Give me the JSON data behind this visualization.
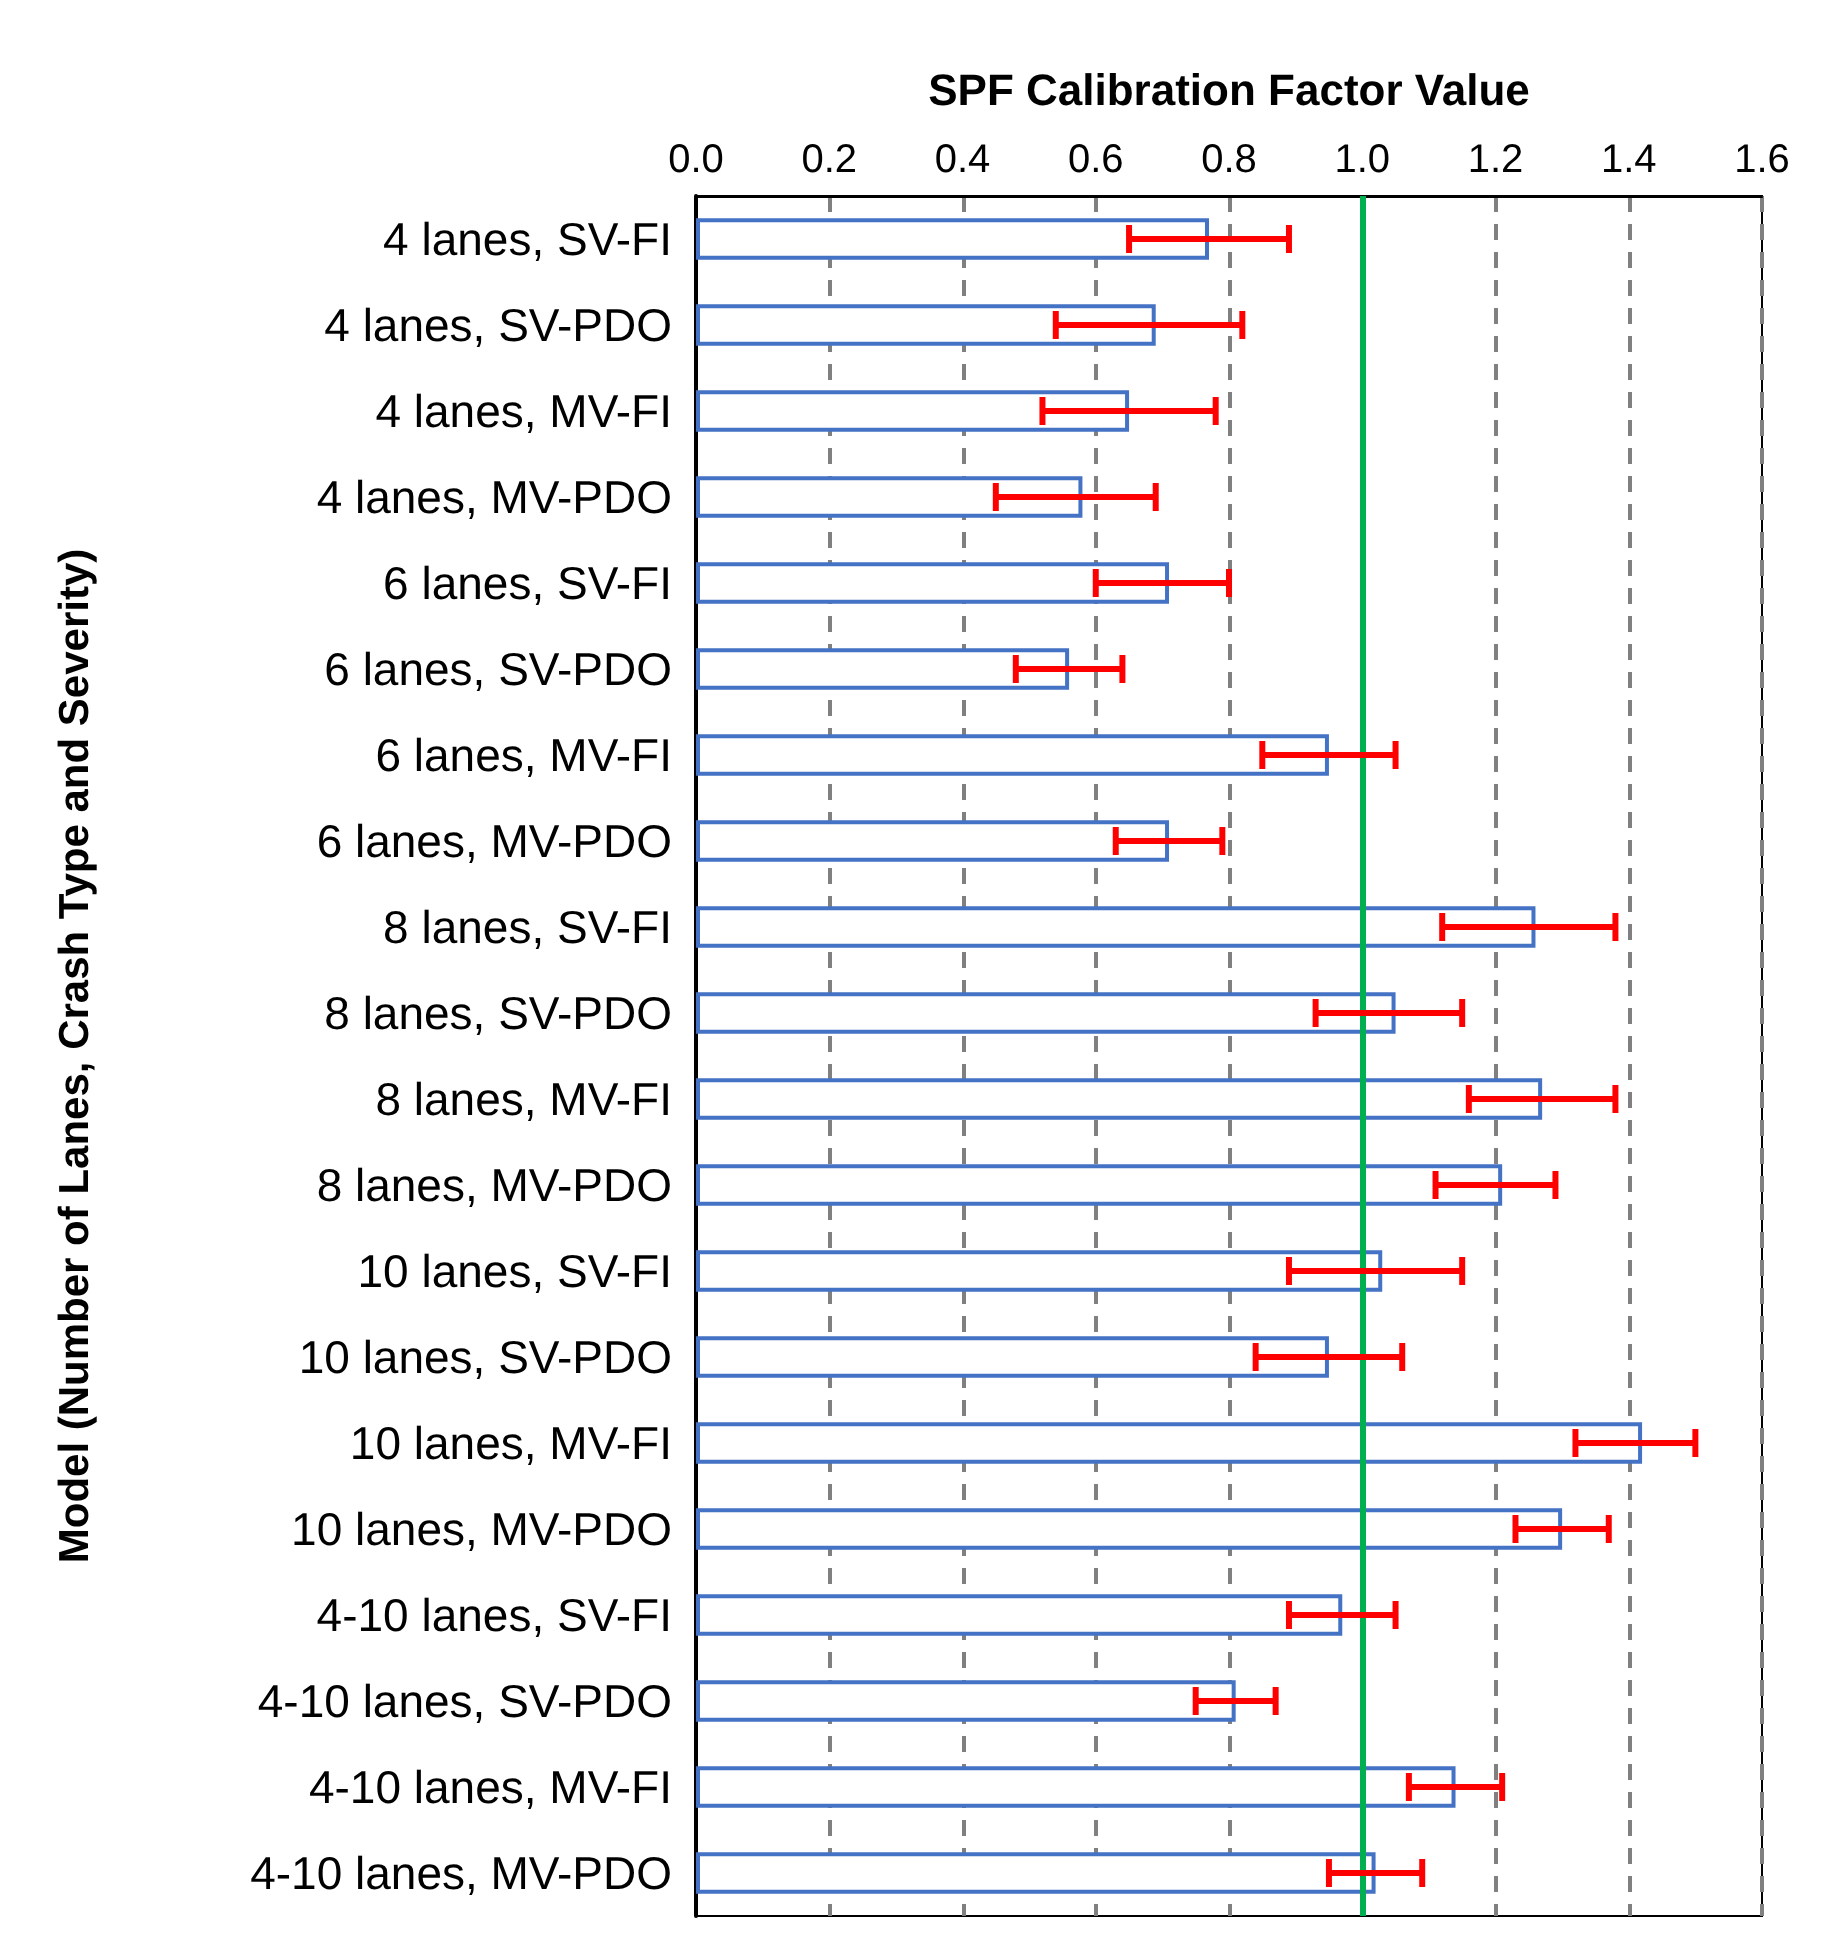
{
  "chart_data": {
    "type": "bar",
    "orientation": "horizontal",
    "xlabel": "SPF Calibration Factor Value",
    "ylabel": "Model (Number of Lanes, Crash Type and Severity)",
    "categories": [
      "4 lanes, SV-FI",
      "4 lanes, SV-PDO",
      "4 lanes, MV-FI",
      "4 lanes, MV-PDO",
      "6 lanes, SV-FI",
      "6 lanes, SV-PDO",
      "6 lanes, MV-FI",
      "6 lanes, MV-PDO",
      "8 lanes, SV-FI",
      "8 lanes, SV-PDO",
      "8 lanes, MV-FI",
      "8 lanes, MV-PDO",
      "10 lanes, SV-FI",
      "10 lanes, SV-PDO",
      "10 lanes, MV-FI",
      "10 lanes, MV-PDO",
      "4-10 lanes, SV-FI",
      "4-10 lanes, SV-PDO",
      "4-10 lanes, MV-FI",
      "4-10 lanes, MV-PDO"
    ],
    "values": [
      0.77,
      0.69,
      0.65,
      0.58,
      0.71,
      0.56,
      0.95,
      0.71,
      1.26,
      1.05,
      1.27,
      1.21,
      1.03,
      0.95,
      1.42,
      1.3,
      0.97,
      0.81,
      1.14,
      1.02
    ],
    "errors": [
      [
        0.65,
        0.89
      ],
      [
        0.54,
        0.82
      ],
      [
        0.52,
        0.78
      ],
      [
        0.45,
        0.69
      ],
      [
        0.6,
        0.8
      ],
      [
        0.48,
        0.64
      ],
      [
        0.85,
        1.05
      ],
      [
        0.63,
        0.79
      ],
      [
        1.12,
        1.38
      ],
      [
        0.93,
        1.15
      ],
      [
        1.16,
        1.38
      ],
      [
        1.11,
        1.29
      ],
      [
        0.89,
        1.15
      ],
      [
        0.84,
        1.06
      ],
      [
        1.32,
        1.5
      ],
      [
        1.23,
        1.37
      ],
      [
        0.89,
        1.05
      ],
      [
        0.75,
        0.87
      ],
      [
        1.07,
        1.21
      ],
      [
        0.95,
        1.09
      ]
    ],
    "color": "#4472c4",
    "xlim": [
      0,
      1.6
    ],
    "xticks": [
      {
        "value": 0,
        "label": "0.0"
      },
      {
        "value": 0.2,
        "label": "0.2"
      },
      {
        "value": 0.4,
        "label": "0.4"
      },
      {
        "value": 0.6,
        "label": "0.6"
      },
      {
        "value": 0.8,
        "label": "0.8"
      },
      {
        "value": 1,
        "label": "1.0"
      },
      {
        "value": 1.2,
        "label": "1.2"
      },
      {
        "value": 1.4,
        "label": "1.4"
      },
      {
        "value": 1.6,
        "label": "1.6"
      }
    ],
    "ref_lines": [
      {
        "axis": "x",
        "value": 1,
        "color": "#00b050"
      }
    ],
    "grid": "x"
  }
}
